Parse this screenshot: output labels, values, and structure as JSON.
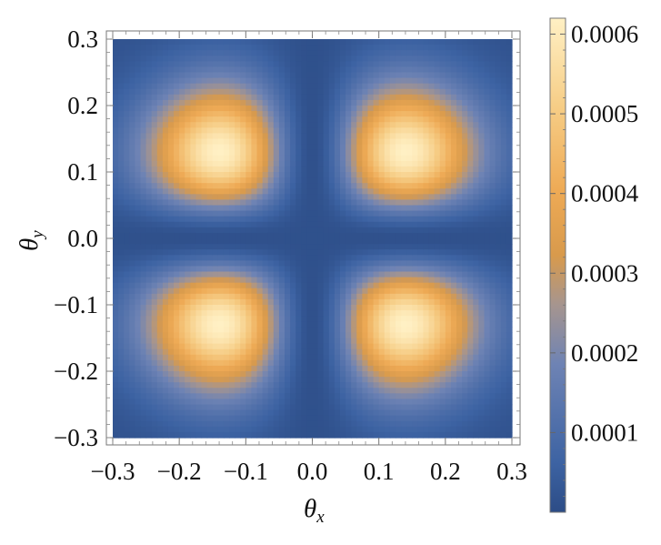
{
  "chart_data": {
    "type": "heatmap",
    "title": "",
    "xlabel": {
      "symbol": "θ",
      "subscript": "x"
    },
    "ylabel": {
      "symbol": "θ",
      "subscript": "y"
    },
    "xlim": [
      -0.3,
      0.3
    ],
    "ylim": [
      -0.3,
      0.3
    ],
    "xticks": [
      "−0.3",
      "−0.2",
      "−0.1",
      "0.0",
      "0.1",
      "0.2",
      "0.3"
    ],
    "xtick_values": [
      -0.3,
      -0.2,
      -0.1,
      0.0,
      0.1,
      0.2,
      0.3
    ],
    "yticks": [
      "0.3",
      "0.2",
      "0.1",
      "0.0",
      "−0.1",
      "−0.2",
      "−0.3"
    ],
    "ytick_values": [
      0.3,
      0.2,
      0.1,
      0.0,
      -0.1,
      -0.2,
      -0.3
    ],
    "peaks": [
      {
        "x": -0.14,
        "y": 0.13,
        "value": 0.00062
      },
      {
        "x": 0.14,
        "y": 0.13,
        "value": 0.00062
      },
      {
        "x": -0.14,
        "y": -0.13,
        "value": 0.00062
      },
      {
        "x": 0.14,
        "y": -0.13,
        "value": 0.00062
      }
    ],
    "colorbar": {
      "min": 0.0,
      "max": 0.00062,
      "tick_values": [
        0.0001,
        0.0002,
        0.0003,
        0.0004,
        0.0005,
        0.0006
      ],
      "tick_labels": [
        "0.0001",
        "0.0002",
        "0.0003",
        "0.0004",
        "0.0005",
        "0.0006"
      ],
      "colors": [
        "#2c4c86",
        "#3d63a3",
        "#6e83b4",
        "#a6958f",
        "#d89a4c",
        "#eeaa55",
        "#f6cd86",
        "#fff0c4"
      ]
    },
    "grid": false,
    "legend": "colorbar-right"
  }
}
